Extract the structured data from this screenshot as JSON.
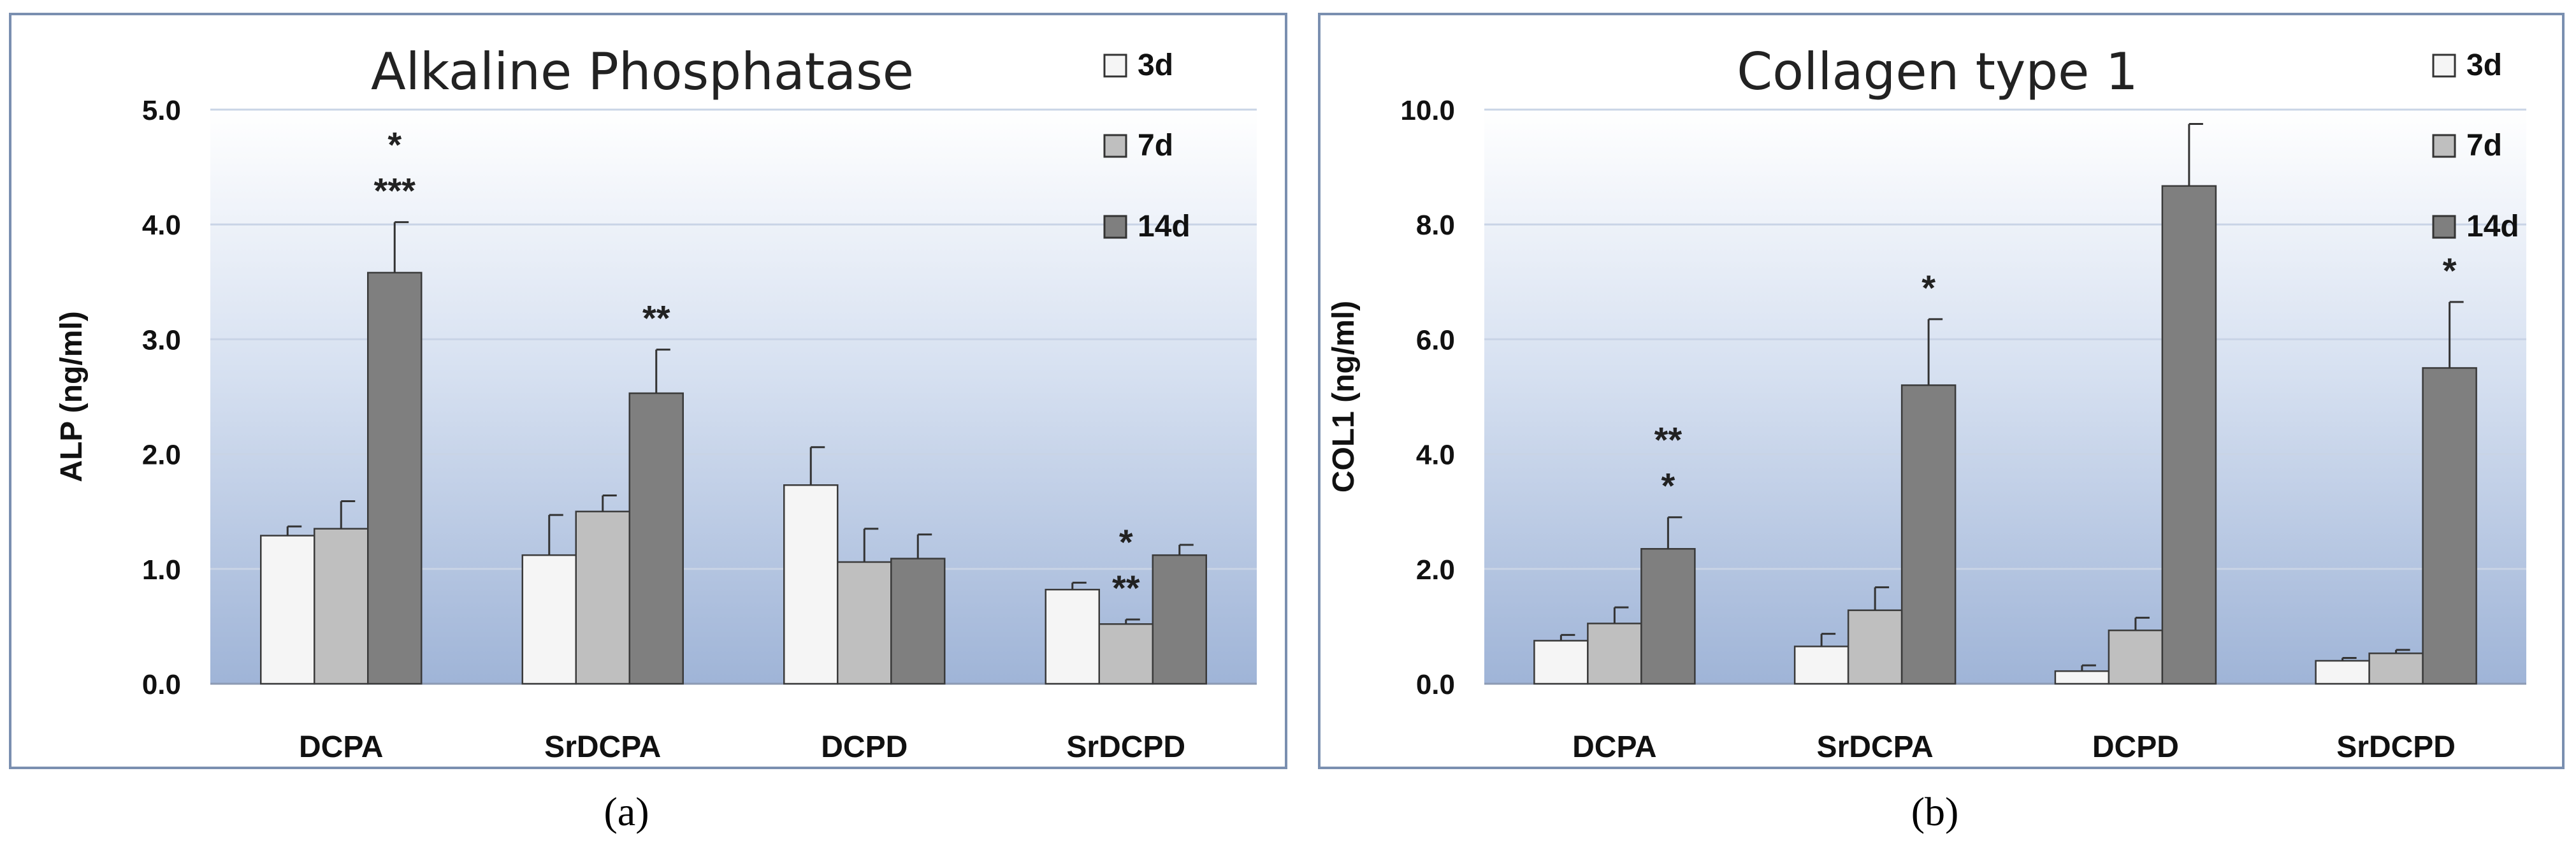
{
  "chart_data": [
    {
      "type": "bar",
      "panel_label": "(a)",
      "title": "Alkaline Phosphatase",
      "ylabel": "ALP (ng/ml)",
      "xlabel": "",
      "ylim": [
        0,
        5
      ],
      "y_ticks": [
        "0.0",
        "1.0",
        "2.0",
        "3.0",
        "4.0",
        "5.0"
      ],
      "grid": true,
      "legend_position": "top-right",
      "categories": [
        "DCPA",
        "SrDCPA",
        "DCPD",
        "SrDCPD"
      ],
      "series": [
        {
          "name": "3d",
          "color": "#f5f5f5",
          "values": [
            1.29,
            1.12,
            1.73,
            0.82
          ],
          "errors": [
            0.08,
            0.35,
            0.33,
            0.06
          ]
        },
        {
          "name": "7d",
          "color": "#bfbfbf",
          "values": [
            1.35,
            1.5,
            1.06,
            0.52
          ],
          "errors": [
            0.24,
            0.14,
            0.29,
            0.04
          ]
        },
        {
          "name": "14d",
          "color": "#7f7f7f",
          "values": [
            3.58,
            2.53,
            1.09,
            1.12
          ],
          "errors": [
            0.44,
            0.38,
            0.21,
            0.09
          ]
        }
      ],
      "annotations": [
        {
          "category": "DCPA",
          "series": "14d",
          "lines": [
            "*",
            "***"
          ]
        },
        {
          "category": "SrDCPA",
          "series": "14d",
          "lines": [
            "**"
          ]
        },
        {
          "category": "SrDCPD",
          "series": "7d",
          "lines": [
            "*",
            "**"
          ]
        }
      ]
    },
    {
      "type": "bar",
      "panel_label": "(b)",
      "title": "Collagen type 1",
      "ylabel": "COL1 (ng/ml)",
      "xlabel": "",
      "ylim": [
        0,
        10
      ],
      "y_ticks": [
        "0.0",
        "2.0",
        "4.0",
        "6.0",
        "8.0",
        "10.0"
      ],
      "grid": true,
      "legend_position": "top-right",
      "categories": [
        "DCPA",
        "SrDCPA",
        "DCPD",
        "SrDCPD"
      ],
      "series": [
        {
          "name": "3d",
          "color": "#f5f5f5",
          "values": [
            0.75,
            0.65,
            0.22,
            0.4
          ],
          "errors": [
            0.1,
            0.22,
            0.1,
            0.05
          ]
        },
        {
          "name": "7d",
          "color": "#bfbfbf",
          "values": [
            1.05,
            1.28,
            0.93,
            0.53
          ],
          "errors": [
            0.28,
            0.4,
            0.22,
            0.06
          ]
        },
        {
          "name": "14d",
          "color": "#7f7f7f",
          "values": [
            2.35,
            5.2,
            8.67,
            5.5
          ],
          "errors": [
            0.55,
            1.15,
            1.08,
            1.15
          ]
        }
      ],
      "annotations": [
        {
          "category": "DCPA",
          "series": "14d",
          "lines": [
            "**",
            "*"
          ]
        },
        {
          "category": "SrDCPA",
          "series": "14d",
          "lines": [
            "*"
          ]
        },
        {
          "category": "SrDCPD",
          "series": "14d",
          "lines": [
            "*"
          ]
        }
      ]
    }
  ]
}
